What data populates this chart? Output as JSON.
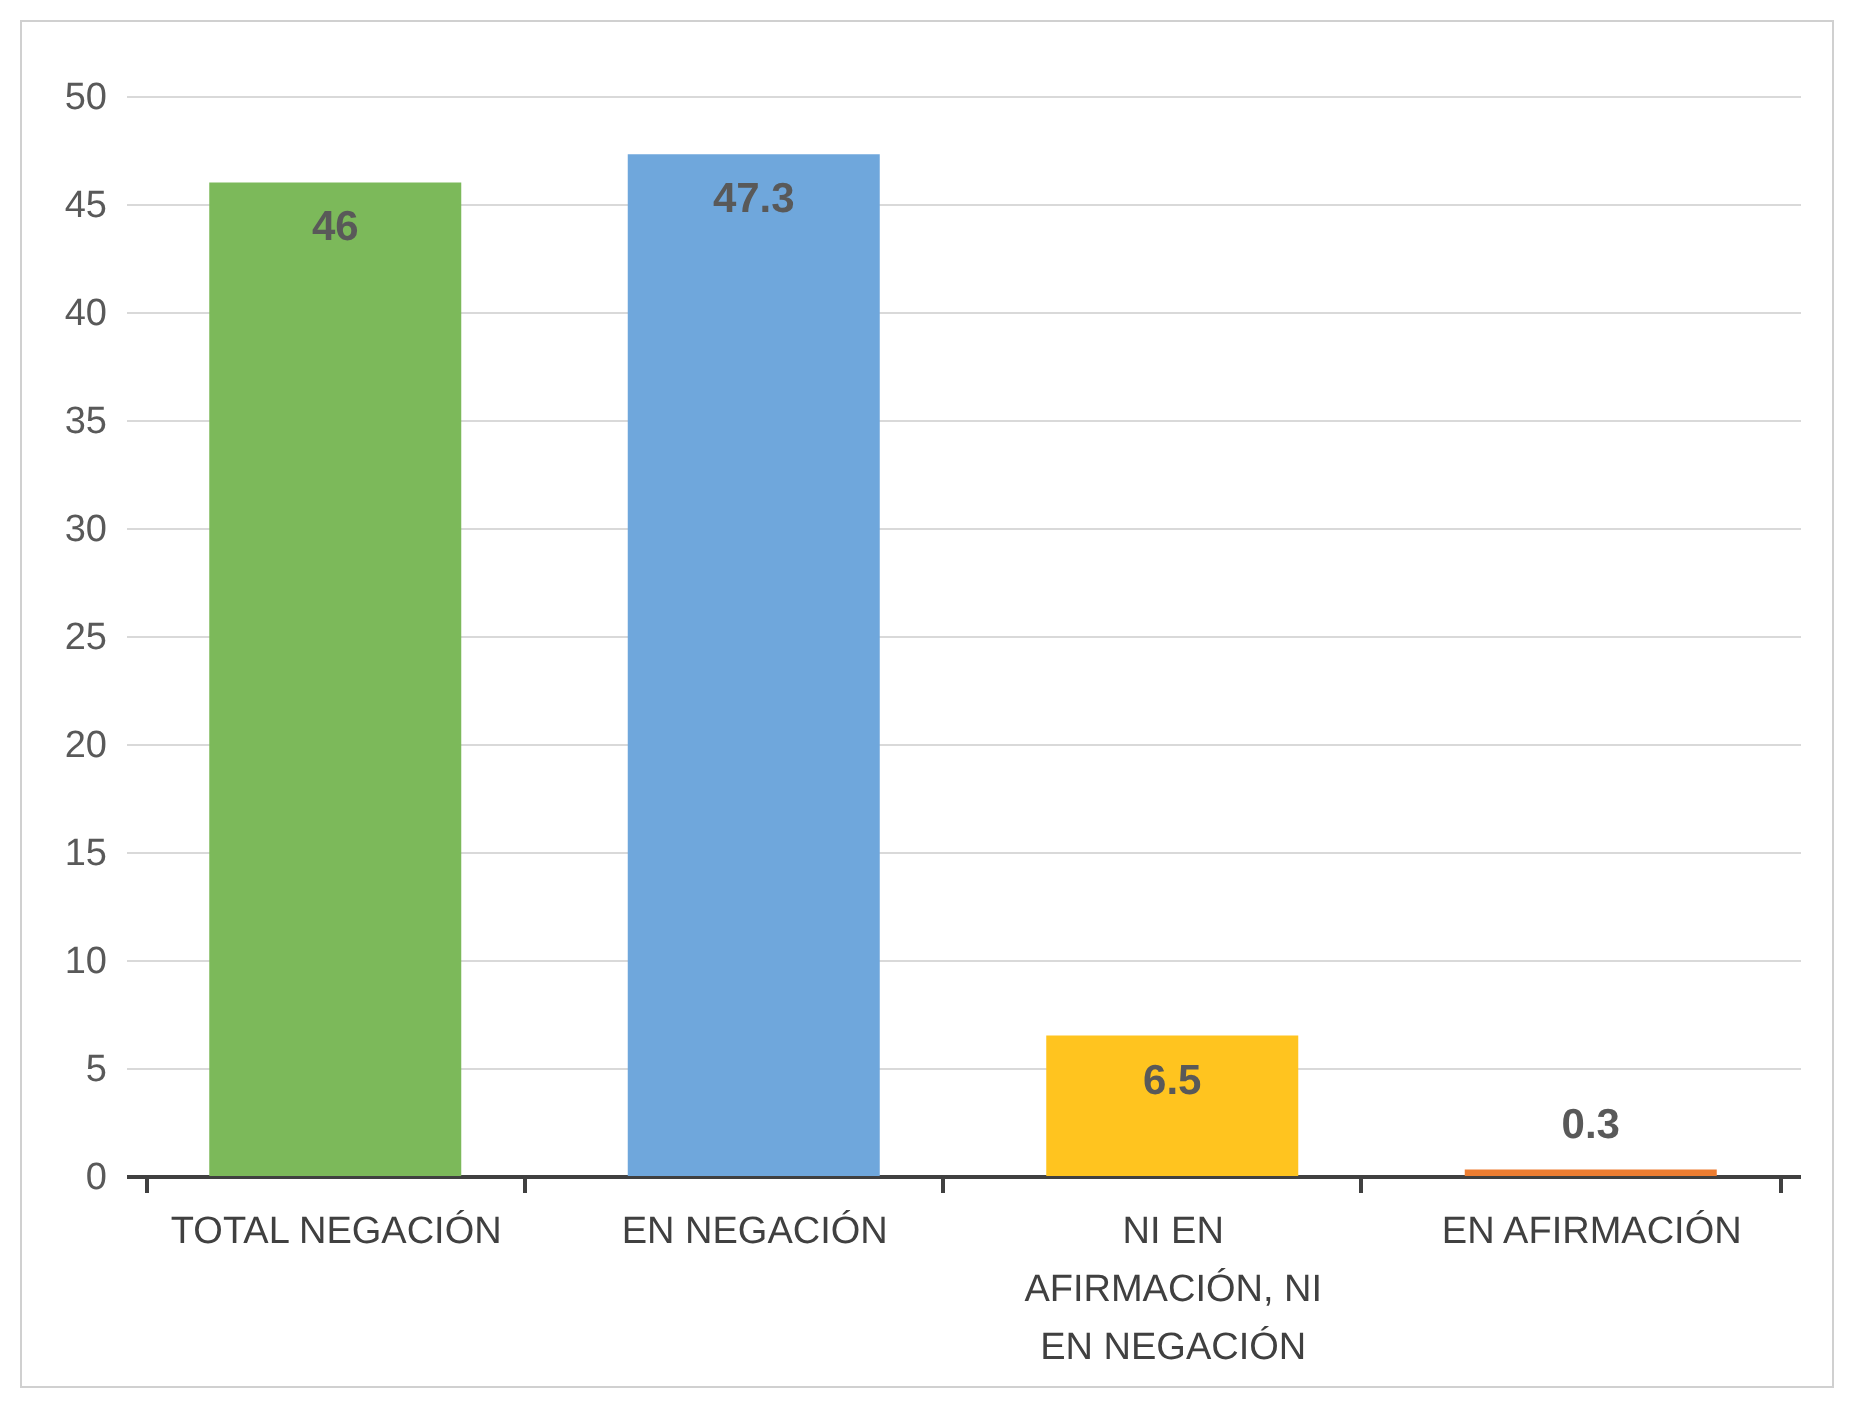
{
  "chart_data": {
    "type": "bar",
    "categories": [
      "TOTAL NEGACIÓN",
      "EN NEGACIÓN",
      "NI EN AFIRMACIÓN, NI EN NEGACIÓN",
      "EN AFIRMACIÓN"
    ],
    "values": [
      46,
      47.3,
      6.5,
      0.3
    ],
    "colors": [
      "#7cb95a",
      "#6fa7dc",
      "#ffc41f",
      "#ed7d31"
    ],
    "ylim": [
      0,
      50
    ],
    "yticks": [
      0,
      5,
      10,
      15,
      20,
      25,
      30,
      35,
      40,
      45,
      50
    ],
    "grid": "y",
    "data_labels": true
  }
}
